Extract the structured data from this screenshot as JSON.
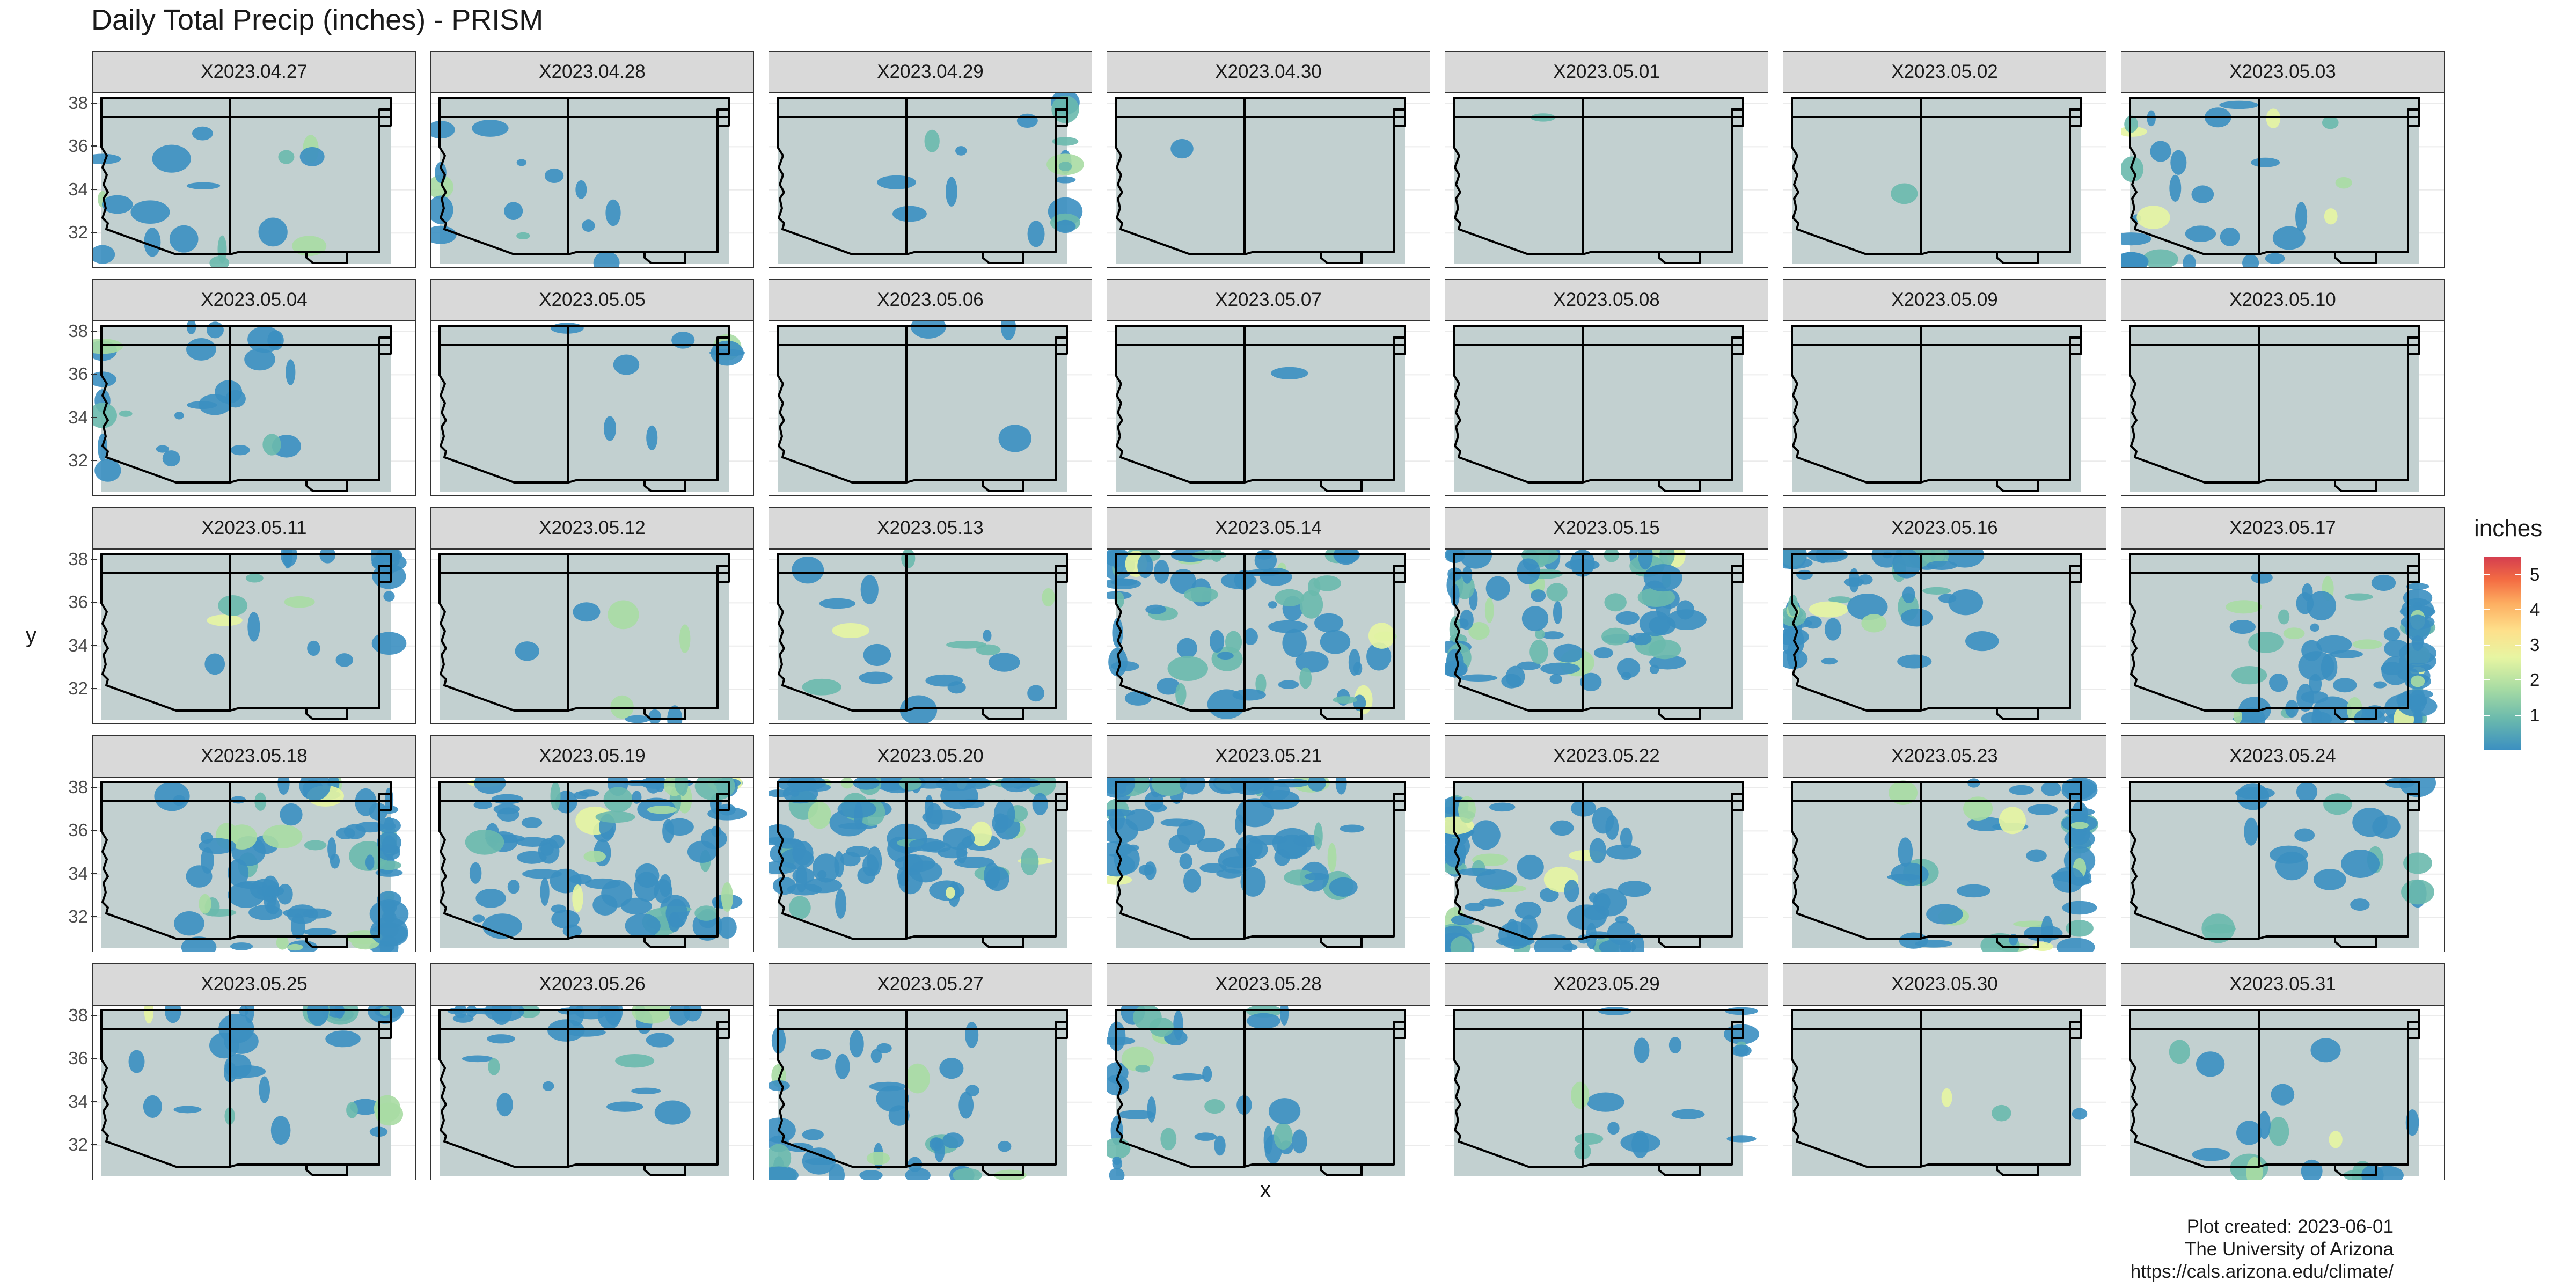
{
  "title": "Daily Total Precip (inches) - PRISM",
  "axes": {
    "x_label": "x",
    "y_label": "y",
    "y_ticks": [
      "32",
      "34",
      "36",
      "38"
    ]
  },
  "legend": {
    "title": "inches",
    "ticks": [
      "1",
      "2",
      "3",
      "4",
      "5"
    ],
    "colors": [
      "#3b8fc1",
      "#6ab9ad",
      "#a8dca3",
      "#e7f5a2",
      "#fee08b",
      "#fdae61",
      "#f46d43",
      "#d53e4f"
    ]
  },
  "colors": {
    "land": "#c2d0d0",
    "strip": "#d9d9d9",
    "border": "#000000",
    "precip_low": "#3b8fc1"
  },
  "panels": [
    {
      "date": "X2023.04.27",
      "cover": 0.12
    },
    {
      "date": "X2023.04.28",
      "cover": 0.1
    },
    {
      "date": "X2023.04.29",
      "cover": 0.12
    },
    {
      "date": "X2023.04.30",
      "cover": 0.01
    },
    {
      "date": "X2023.05.01",
      "cover": 0.01
    },
    {
      "date": "X2023.05.02",
      "cover": 0.01
    },
    {
      "date": "X2023.05.03",
      "cover": 0.2
    },
    {
      "date": "X2023.05.04",
      "cover": 0.18
    },
    {
      "date": "X2023.05.05",
      "cover": 0.06
    },
    {
      "date": "X2023.05.06",
      "cover": 0.02
    },
    {
      "date": "X2023.05.07",
      "cover": 0.01
    },
    {
      "date": "X2023.05.08",
      "cover": 0.0
    },
    {
      "date": "X2023.05.09",
      "cover": 0.0
    },
    {
      "date": "X2023.05.10",
      "cover": 0.0
    },
    {
      "date": "X2023.05.11",
      "cover": 0.15
    },
    {
      "date": "X2023.05.12",
      "cover": 0.06
    },
    {
      "date": "X2023.05.13",
      "cover": 0.12
    },
    {
      "date": "X2023.05.14",
      "cover": 0.5
    },
    {
      "date": "X2023.05.15",
      "cover": 0.55
    },
    {
      "date": "X2023.05.16",
      "cover": 0.4
    },
    {
      "date": "X2023.05.17",
      "cover": 0.6
    },
    {
      "date": "X2023.05.18",
      "cover": 0.6
    },
    {
      "date": "X2023.05.19",
      "cover": 0.65
    },
    {
      "date": "X2023.05.20",
      "cover": 0.7
    },
    {
      "date": "X2023.05.21",
      "cover": 0.55
    },
    {
      "date": "X2023.05.22",
      "cover": 0.55
    },
    {
      "date": "X2023.05.23",
      "cover": 0.35
    },
    {
      "date": "X2023.05.24",
      "cover": 0.15
    },
    {
      "date": "X2023.05.25",
      "cover": 0.22
    },
    {
      "date": "X2023.05.26",
      "cover": 0.22
    },
    {
      "date": "X2023.05.27",
      "cover": 0.3
    },
    {
      "date": "X2023.05.28",
      "cover": 0.25
    },
    {
      "date": "X2023.05.29",
      "cover": 0.12
    },
    {
      "date": "X2023.05.30",
      "cover": 0.02
    },
    {
      "date": "X2023.05.31",
      "cover": 0.12
    }
  ],
  "caption": [
    "Plot created: 2023-06-01",
    "The University of Arizona",
    "https://cals.arizona.edu/climate/"
  ]
}
